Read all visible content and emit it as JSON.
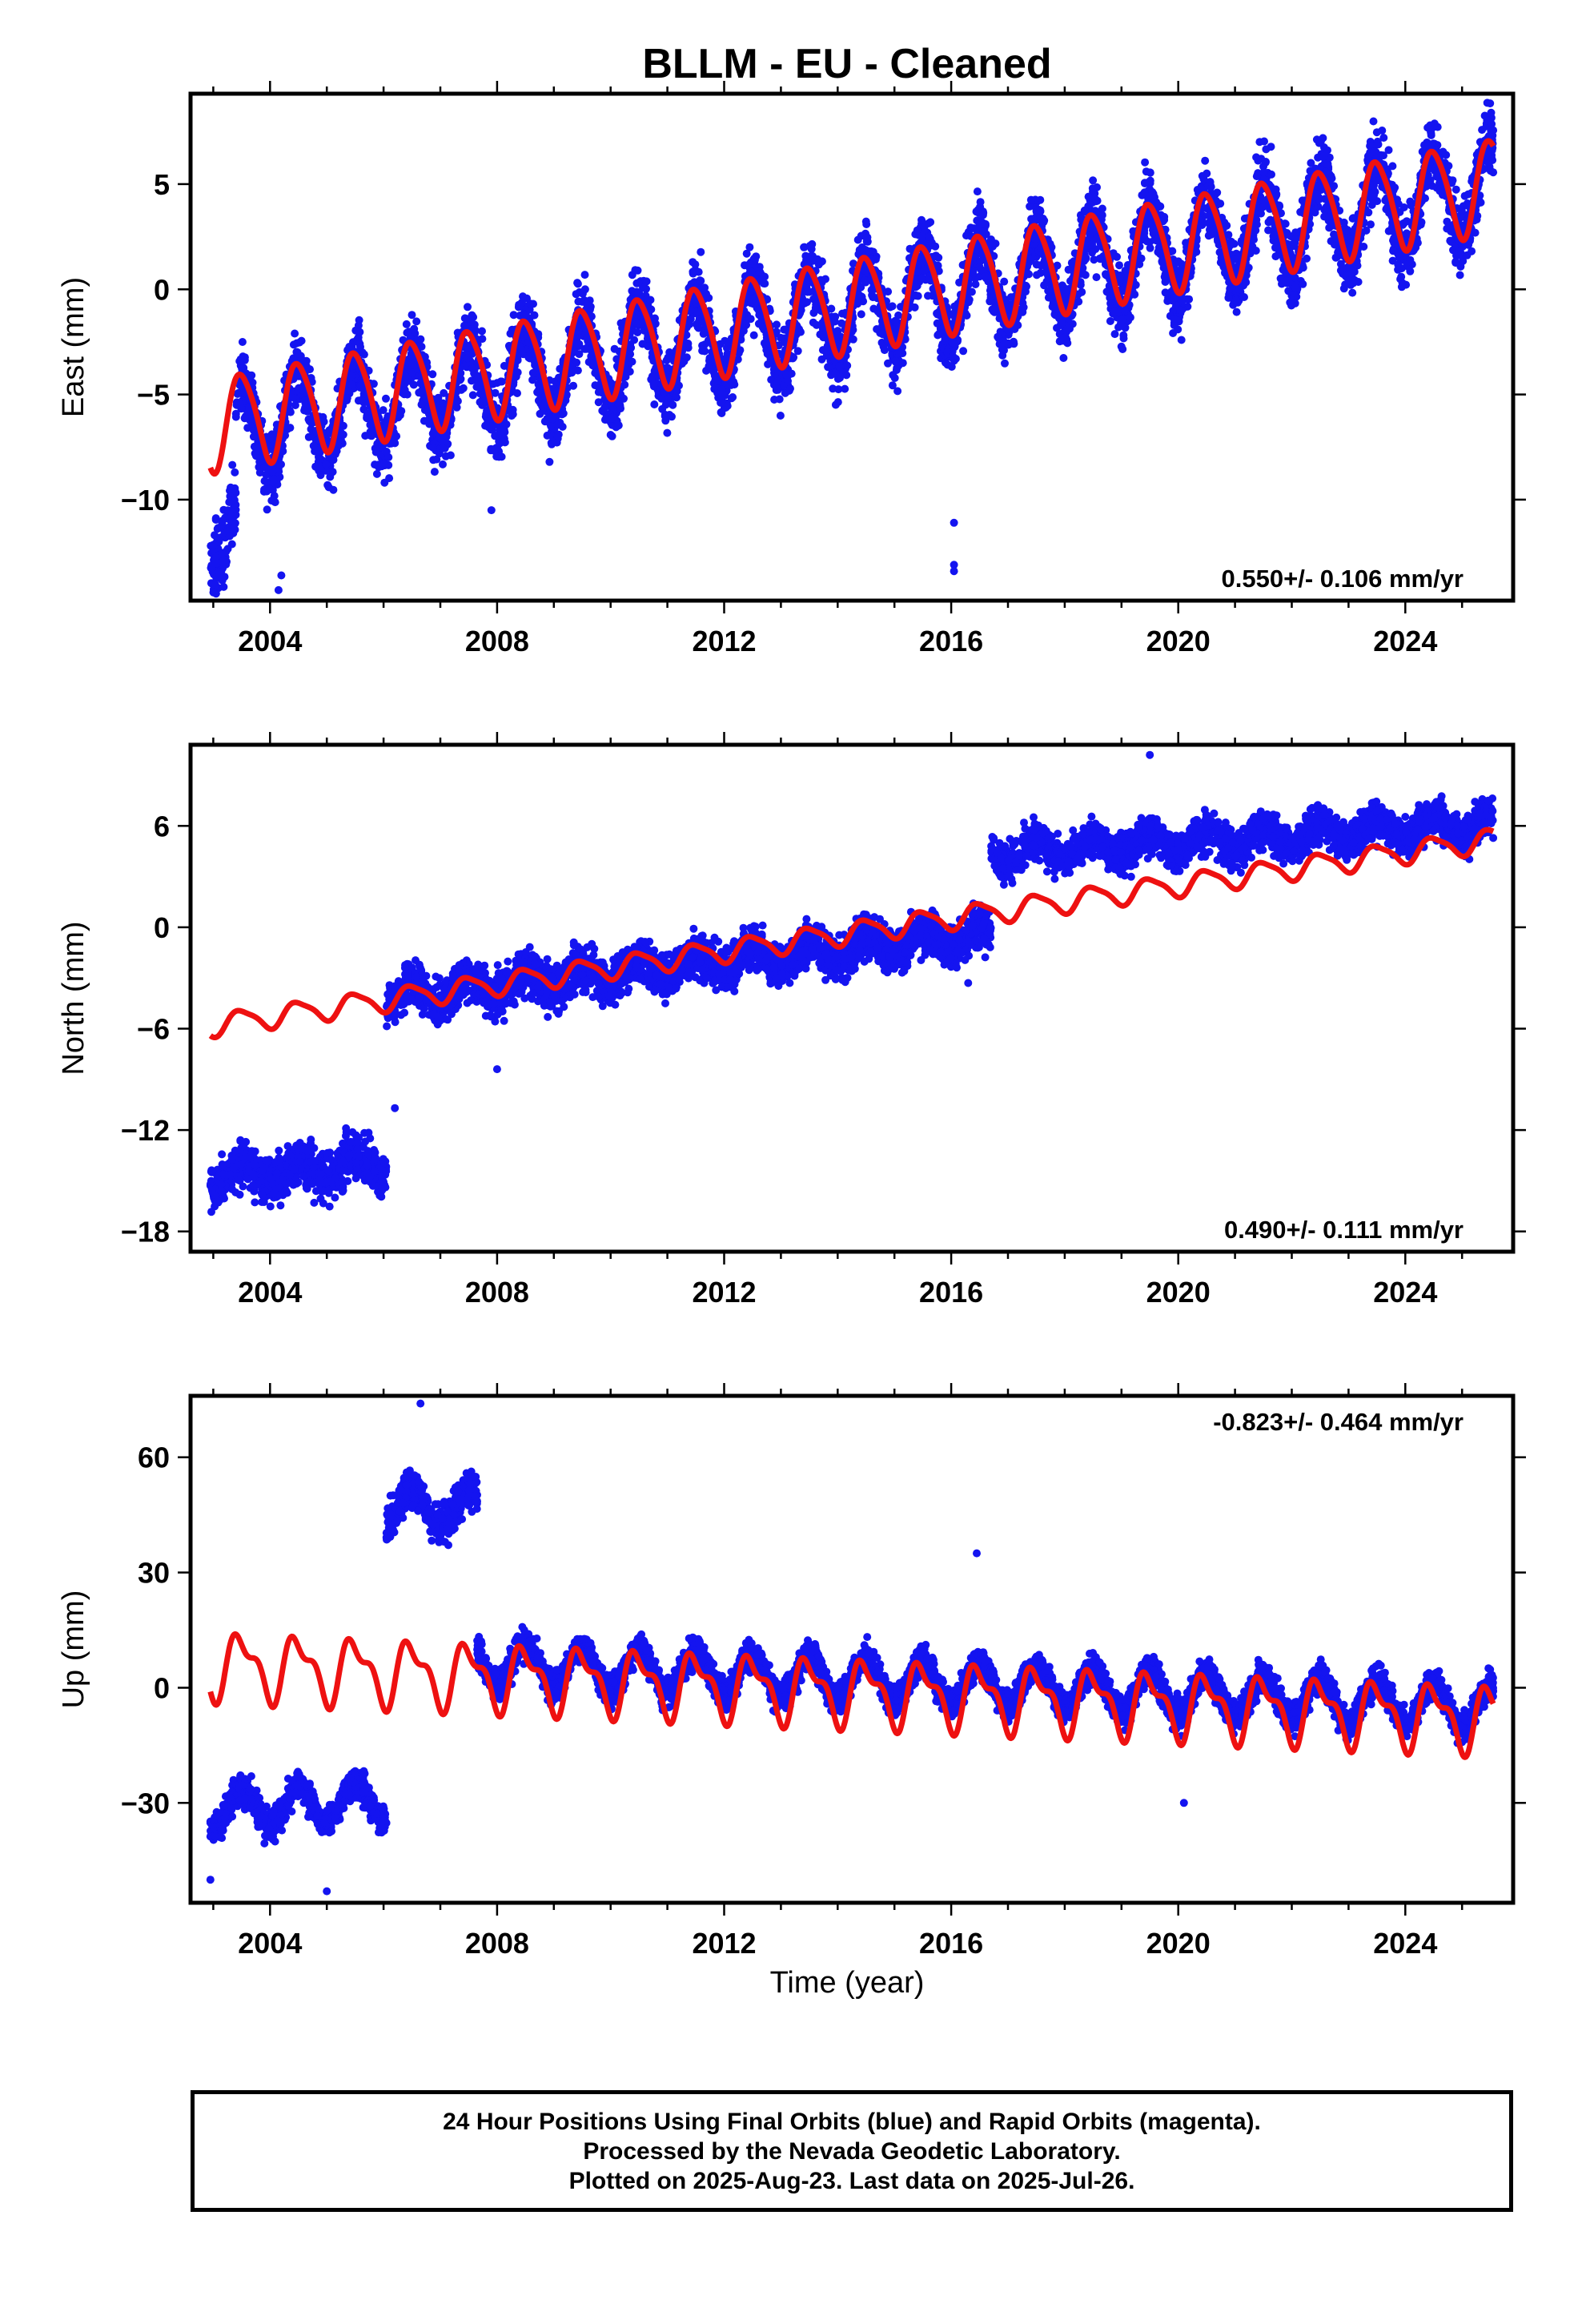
{
  "title": "BLLM  - EU - Cleaned",
  "xlabel": "Time (year)",
  "footer": {
    "line1": "24 Hour Positions Using Final Orbits (blue) and Rapid Orbits (magenta).",
    "line2": "Processed by the Nevada Geodetic Laboratory.",
    "line3": "Plotted on 2025-Aug-23. Last data on 2025-Jul-26."
  },
  "colors": {
    "points": "#1414f0",
    "fit": "#ee1111",
    "frame": "#000000"
  },
  "chart_data": [
    {
      "type": "scatter",
      "ylabel": "East (mm)",
      "rate_text": "0.550+/- 0.106 mm/yr",
      "rate_position": "bottom-right",
      "xlim": [
        2002.6,
        2025.9
      ],
      "ylim": [
        -14.8,
        9.3
      ],
      "xticks": [
        2004,
        2008,
        2012,
        2016,
        2020,
        2024
      ],
      "xticklabels": [
        "2004",
        "2008",
        "2012",
        "2016",
        "2020",
        "2024"
      ],
      "yticks": [
        -10,
        -5,
        0,
        5
      ],
      "yticklabels": [
        "−10",
        "−5",
        "0",
        "5"
      ],
      "data_range": [
        2002.95,
        2025.55
      ],
      "series": [
        {
          "kind": "observations",
          "segments": [
            {
              "from": 2002.95,
              "to": 2003.4,
              "y0": -12.3,
              "y1": -11.2,
              "amp": 1.2,
              "scatter": 2.8
            },
            {
              "from": 2003.4,
              "to": 2025.55,
              "y0": -6.7,
              "y1": 4.9,
              "amp": 2.2,
              "scatter": 2.2
            }
          ],
          "outliers": [
            [
              2004.15,
              -14.3
            ],
            [
              2004.2,
              -13.6
            ],
            [
              2016.05,
              -11.1
            ],
            [
              2016.05,
              -13.1
            ],
            [
              2016.05,
              -13.4
            ],
            [
              2007.9,
              -10.5
            ]
          ]
        },
        {
          "kind": "model",
          "segments": [
            {
              "from": 2002.95,
              "to": 2025.55,
              "y0": -6.4,
              "y1": 5.0,
              "amp": 2.2,
              "amp2": 0.3
            }
          ]
        }
      ]
    },
    {
      "type": "scatter",
      "ylabel": "North (mm)",
      "rate_text": "0.490+/- 0.111 mm/yr",
      "rate_position": "bottom-right",
      "xlim": [
        2002.6,
        2025.9
      ],
      "ylim": [
        -19.2,
        10.8
      ],
      "xticks": [
        2004,
        2008,
        2012,
        2016,
        2020,
        2024
      ],
      "xticklabels": [
        "2004",
        "2008",
        "2012",
        "2016",
        "2020",
        "2024"
      ],
      "yticks": [
        -18,
        -12,
        -6,
        0,
        6
      ],
      "yticklabels": [
        "−18",
        "−12",
        "−6",
        "0",
        "6"
      ],
      "data_range": [
        2002.95,
        2025.55
      ],
      "series": [
        {
          "kind": "observations",
          "segments": [
            {
              "from": 2002.95,
              "to": 2006.05,
              "y0": -14.8,
              "y1": -14.0,
              "amp": 0.6,
              "scatter": 1.7
            },
            {
              "from": 2006.05,
              "to": 2016.7,
              "y0": -4.1,
              "y1": -0.4,
              "amp": 0.6,
              "scatter": 1.6
            },
            {
              "from": 2016.7,
              "to": 2025.55,
              "y0": 4.4,
              "y1": 6.1,
              "amp": 0.6,
              "scatter": 1.4
            }
          ],
          "outliers": [
            [
              2008.0,
              -8.4
            ],
            [
              2016.3,
              -3.3
            ],
            [
              2019.5,
              10.2
            ],
            [
              2006.2,
              -10.7
            ]
          ]
        },
        {
          "kind": "model",
          "segments": [
            {
              "from": 2002.95,
              "to": 2025.55,
              "y0": -5.8,
              "y1": 5.2,
              "amp": 0.65,
              "amp2": 0.15
            }
          ]
        }
      ]
    },
    {
      "type": "scatter",
      "ylabel": "Up (mm)",
      "rate_text": "-0.823+/- 0.464 mm/yr",
      "rate_position": "top-right",
      "xlim": [
        2002.6,
        2025.9
      ],
      "ylim": [
        -56,
        76
      ],
      "xticks": [
        2004,
        2008,
        2012,
        2016,
        2020,
        2024
      ],
      "xticklabels": [
        "2004",
        "2008",
        "2012",
        "2016",
        "2020",
        "2024"
      ],
      "yticks": [
        -30,
        0,
        30,
        60
      ],
      "yticklabels": [
        "−30",
        "0",
        "30",
        "60"
      ],
      "data_range": [
        2002.95,
        2025.55
      ],
      "series": [
        {
          "kind": "observations",
          "segments": [
            {
              "from": 2002.95,
              "to": 2006.05,
              "y0": -32.0,
              "y1": -29.0,
              "amp": 5.0,
              "scatter": 5.0
            },
            {
              "from": 2006.05,
              "to": 2007.65,
              "y0": 47.0,
              "y1": 47.0,
              "amp": 5.0,
              "scatter": 6.0
            },
            {
              "from": 2007.65,
              "to": 2025.55,
              "y0": 6.5,
              "y1": -5.0,
              "amp": 5.5,
              "scatter": 5.0
            }
          ],
          "outliers": [
            [
              2002.95,
              -50.0
            ],
            [
              2005.0,
              -53.0
            ],
            [
              2016.45,
              35.0
            ],
            [
              2006.65,
              74.0
            ],
            [
              2020.1,
              -30.0
            ]
          ]
        },
        {
          "kind": "model",
          "segments": [
            {
              "from": 2002.95,
              "to": 2025.55,
              "y0": 6.0,
              "y1": -8.0,
              "amp": 7.5,
              "amp2": 3.5
            }
          ]
        }
      ]
    }
  ]
}
